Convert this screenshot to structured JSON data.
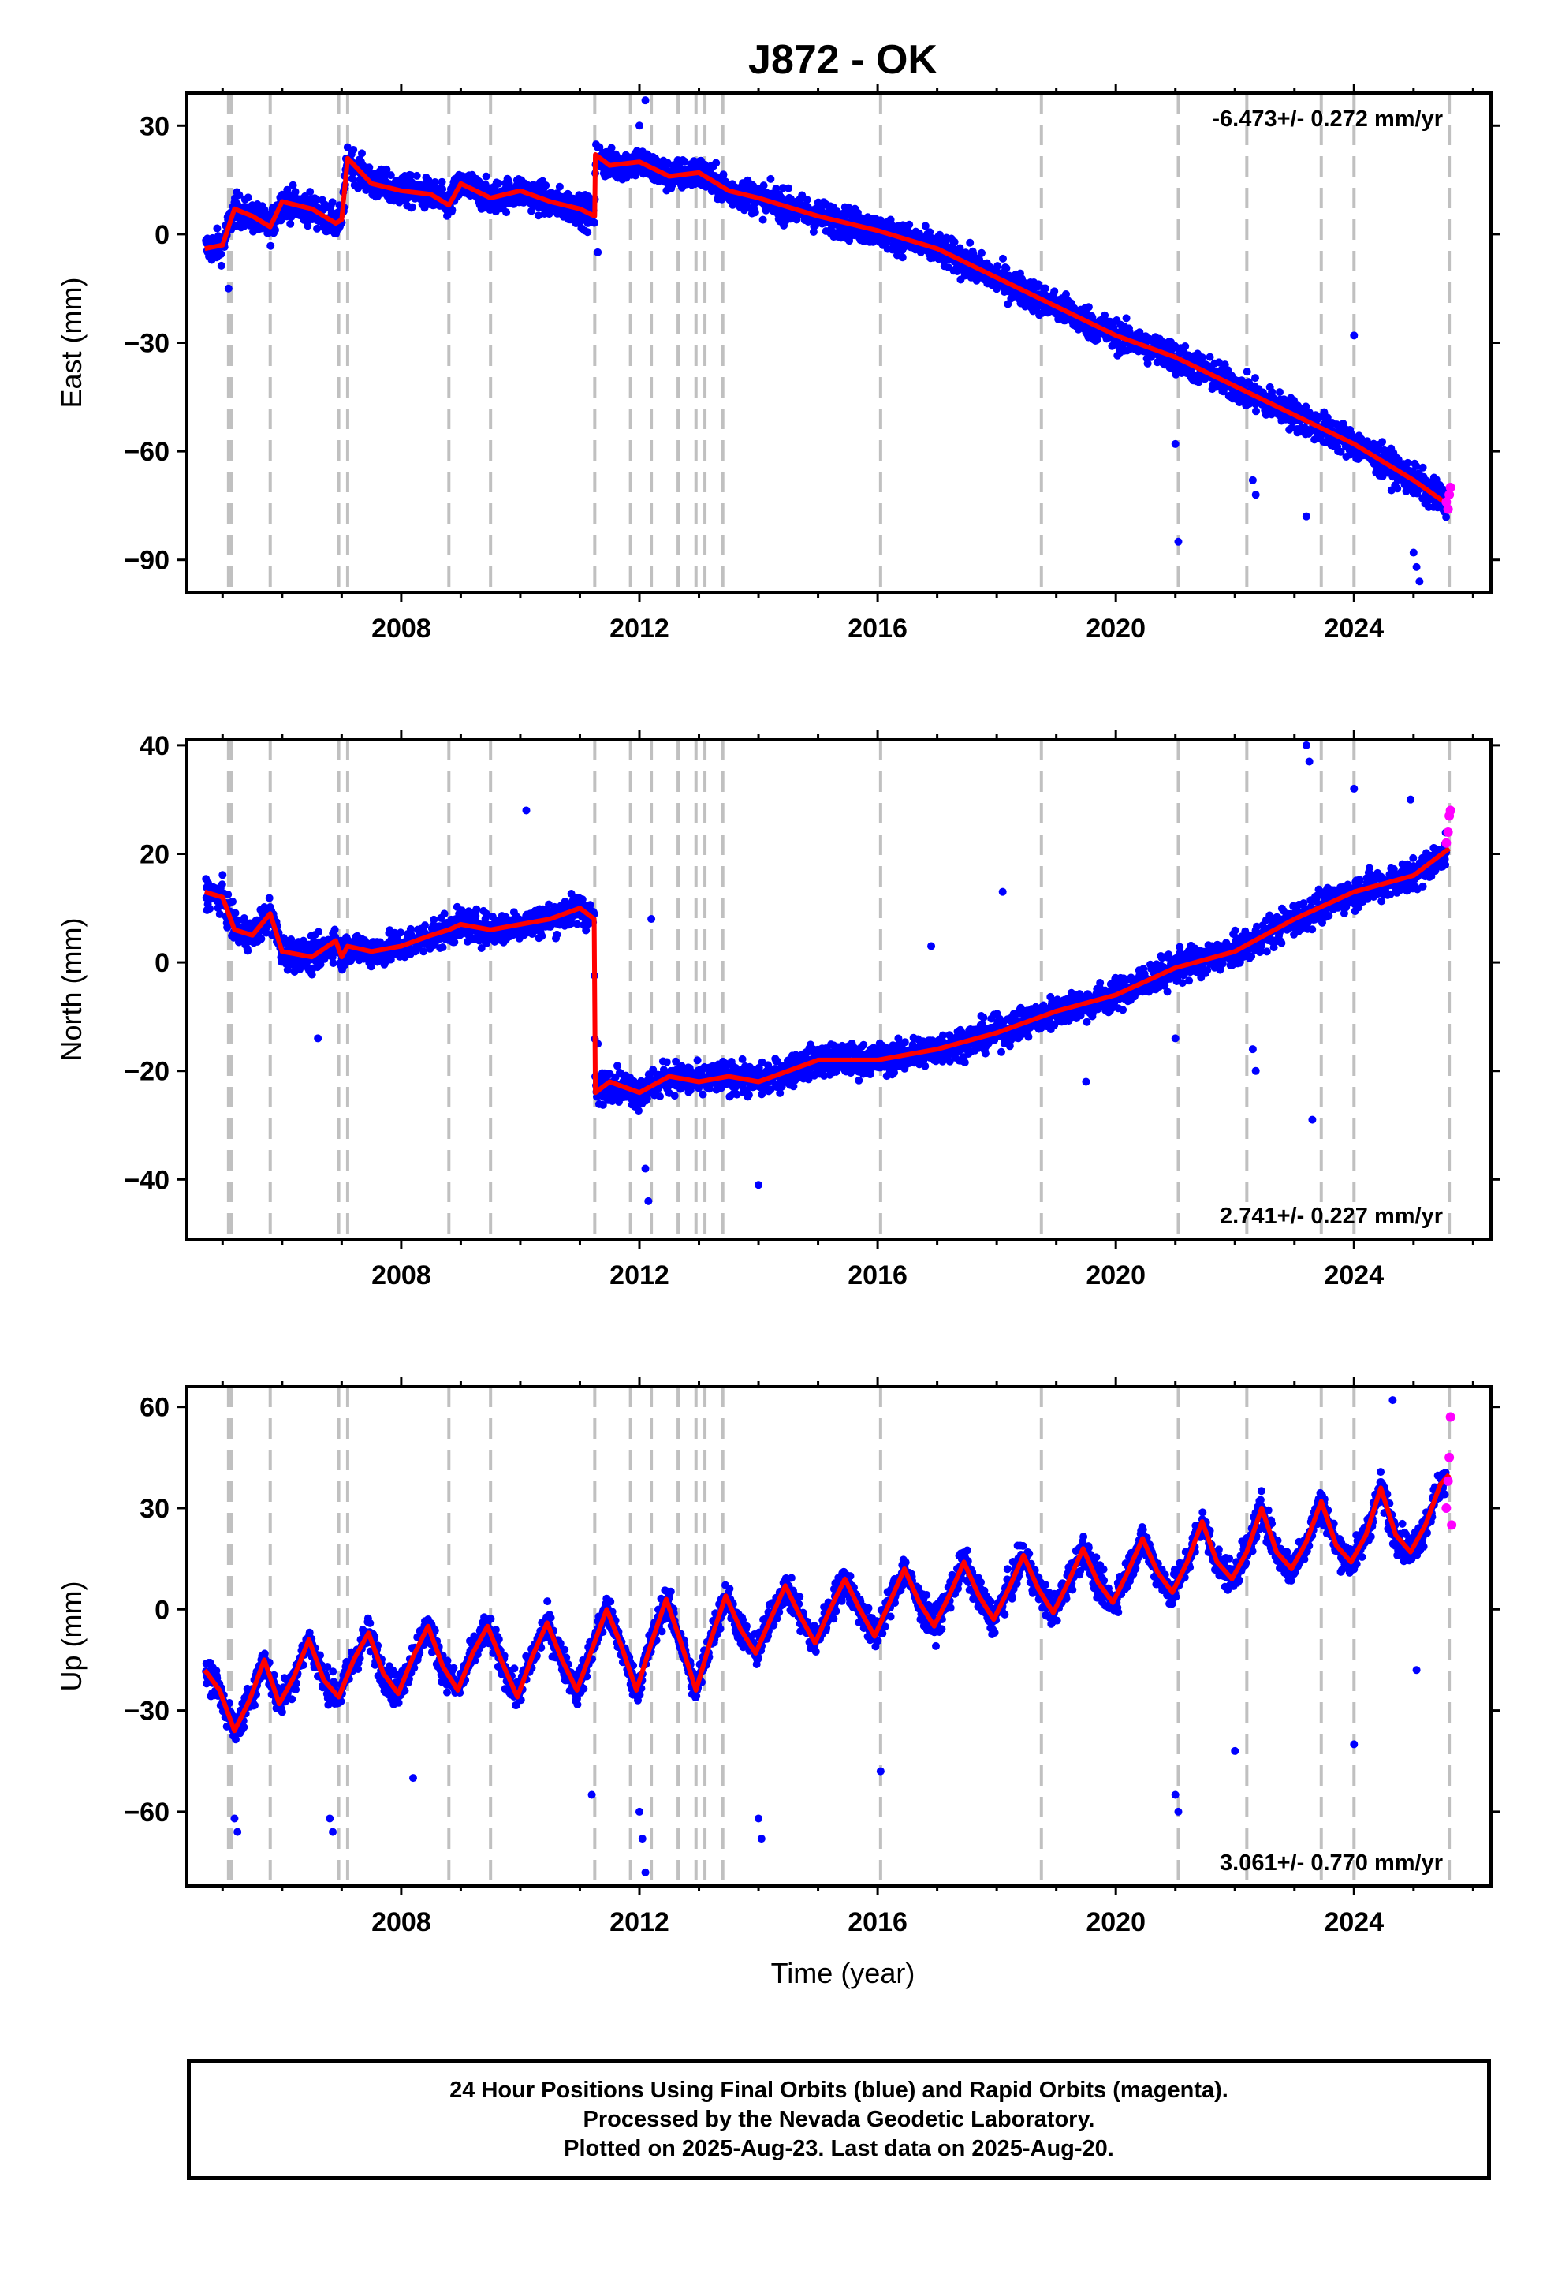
{
  "page": {
    "title": "J872 - OK",
    "xlabel": "Time (year)",
    "footer_lines": [
      "24 Hour Positions Using Final Orbits (blue) and Rapid Orbits (magenta).",
      "Processed by the Nevada Geodetic Laboratory.",
      "Plotted on 2025-Aug-23. Last data on 2025-Aug-20."
    ]
  },
  "colors": {
    "final_orbits": "#0000ff",
    "rapid_orbits": "#ff00ff",
    "model": "#ff0000",
    "event_lines": "#c0c0c0"
  },
  "chart_data": [
    {
      "type": "scatter",
      "name": "east",
      "title": "J872 - OK",
      "ylabel": "East (mm)",
      "xlabel": "",
      "xlim": [
        2004.4,
        2026.3
      ],
      "ylim": [
        -99,
        39
      ],
      "xticks": [
        "2008",
        "2012",
        "2016",
        "2020",
        "2024"
      ],
      "yticks": [
        "30",
        "0",
        "−30",
        "−60",
        "−90"
      ],
      "ytick_values": [
        30,
        0,
        -30,
        -60,
        -90
      ],
      "rate_label": "-6.473+/- 0.272 mm/yr",
      "rate_position": "top-right",
      "grid": false,
      "event_lines": [
        2005.1,
        2005.15,
        2005.8,
        2006.95,
        2007.1,
        2008.8,
        2009.5,
        2011.25,
        2011.85,
        2012.2,
        2012.65,
        2012.95,
        2013.1,
        2013.4,
        2016.05,
        2018.75,
        2021.05,
        2022.2,
        2023.45,
        2024.0,
        2025.6
      ],
      "model": {
        "x": [
          2004.7,
          2005.0,
          2005.2,
          2005.5,
          2005.8,
          2006.0,
          2006.5,
          2006.9,
          2007.0,
          2007.1,
          2007.5,
          2008.0,
          2008.5,
          2008.8,
          2009.0,
          2009.5,
          2010.0,
          2010.5,
          2011.0,
          2011.25,
          2011.26,
          2011.5,
          2012.0,
          2012.5,
          2013.0,
          2013.5,
          2014.0,
          2015.0,
          2016.0,
          2017.0,
          2018.0,
          2019.0,
          2020.0,
          2021.0,
          2022.0,
          2023.0,
          2024.0,
          2025.0,
          2025.6
        ],
        "y": [
          -4,
          -3,
          7,
          5,
          2,
          9,
          7,
          3,
          4,
          21,
          14,
          12,
          11,
          8,
          14,
          10,
          12,
          9,
          7,
          5,
          22,
          19,
          20,
          16,
          17,
          12,
          10,
          5,
          1,
          -4,
          -12,
          -20,
          -28,
          -34,
          -42,
          -50,
          -58,
          -68,
          -75
        ]
      },
      "outliers": {
        "x": [
          2005.1,
          2011.3,
          2012.0,
          2012.1,
          2021.0,
          2021.05,
          2022.3,
          2022.35,
          2023.2,
          2024.0,
          2025.0,
          2025.05,
          2025.1
        ],
        "y": [
          -15,
          -5,
          30,
          37,
          -58,
          -85,
          -68,
          -72,
          -78,
          -28,
          -88,
          -92,
          -96
        ]
      },
      "rapid": {
        "x": [
          2025.55,
          2025.58,
          2025.6,
          2025.62
        ],
        "y": [
          -74,
          -76,
          -72,
          -70
        ]
      }
    },
    {
      "type": "scatter",
      "name": "north",
      "ylabel": "North (mm)",
      "xlabel": "",
      "xlim": [
        2004.4,
        2026.3
      ],
      "ylim": [
        -51,
        41
      ],
      "xticks": [
        "2008",
        "2012",
        "2016",
        "2020",
        "2024"
      ],
      "yticks": [
        "40",
        "20",
        "0",
        "−20",
        "−40"
      ],
      "ytick_values": [
        40,
        20,
        0,
        -20,
        -40
      ],
      "rate_label": "2.741+/- 0.227 mm/yr",
      "rate_position": "bottom-right",
      "grid": false,
      "event_lines": [
        2005.1,
        2005.15,
        2005.8,
        2006.95,
        2007.1,
        2008.8,
        2009.5,
        2011.25,
        2011.85,
        2012.2,
        2012.65,
        2012.95,
        2013.1,
        2013.4,
        2016.05,
        2018.75,
        2021.05,
        2022.2,
        2023.45,
        2024.0,
        2025.6
      ],
      "model": {
        "x": [
          2004.7,
          2005.0,
          2005.2,
          2005.5,
          2005.8,
          2006.0,
          2006.5,
          2006.9,
          2007.0,
          2007.1,
          2007.5,
          2008.0,
          2008.5,
          2008.8,
          2009.0,
          2009.5,
          2010.0,
          2010.5,
          2011.0,
          2011.24,
          2011.26,
          2011.5,
          2012.0,
          2012.5,
          2013.0,
          2013.5,
          2014.0,
          2015.0,
          2016.0,
          2017.0,
          2018.0,
          2019.0,
          2020.0,
          2021.0,
          2022.0,
          2023.0,
          2024.0,
          2025.0,
          2025.6
        ],
        "y": [
          13,
          12,
          6,
          5,
          9,
          2,
          1,
          4,
          1,
          3,
          2,
          3,
          5,
          6,
          7,
          6,
          7,
          8,
          10,
          8,
          -24,
          -22,
          -24,
          -21,
          -22,
          -21,
          -22,
          -18,
          -18,
          -16,
          -13,
          -9,
          -6,
          -1,
          2,
          8,
          13,
          16,
          21
        ]
      },
      "outliers": {
        "x": [
          2006.6,
          2010.1,
          2011.3,
          2012.1,
          2012.15,
          2012.2,
          2014.0,
          2016.9,
          2018.1,
          2019.5,
          2021.0,
          2022.3,
          2022.35,
          2023.2,
          2023.25,
          2023.3,
          2024.0,
          2024.95
        ],
        "y": [
          -14,
          28,
          -15,
          -38,
          -44,
          8,
          -41,
          3,
          13,
          -22,
          -14,
          -16,
          -20,
          40,
          37,
          -29,
          32,
          30
        ]
      },
      "rapid": {
        "x": [
          2025.55,
          2025.58,
          2025.6,
          2025.62
        ],
        "y": [
          22,
          24,
          27,
          28
        ]
      }
    },
    {
      "type": "scatter",
      "name": "up",
      "ylabel": "Up (mm)",
      "xlabel": "Time (year)",
      "xlim": [
        2004.4,
        2026.3
      ],
      "ylim": [
        -82,
        66
      ],
      "xticks": [
        "2008",
        "2012",
        "2016",
        "2020",
        "2024"
      ],
      "yticks": [
        "60",
        "30",
        "0",
        "−30",
        "−60"
      ],
      "ytick_values": [
        60,
        30,
        0,
        -30,
        -60
      ],
      "rate_label": "3.061+/- 0.770 mm/yr",
      "rate_position": "bottom-right",
      "grid": false,
      "event_lines": [
        2005.1,
        2005.15,
        2005.8,
        2006.95,
        2007.1,
        2008.8,
        2009.5,
        2011.25,
        2011.85,
        2012.2,
        2012.65,
        2012.95,
        2013.1,
        2013.4,
        2016.05,
        2018.75,
        2021.05,
        2022.2,
        2023.45,
        2024.0,
        2025.6
      ],
      "model": {
        "x": [
          2004.7,
          2004.95,
          2005.2,
          2005.45,
          2005.7,
          2005.95,
          2006.2,
          2006.45,
          2006.7,
          2006.95,
          2007.2,
          2007.45,
          2007.7,
          2007.95,
          2008.2,
          2008.45,
          2008.7,
          2008.95,
          2009.2,
          2009.45,
          2009.7,
          2009.95,
          2010.2,
          2010.45,
          2010.7,
          2010.95,
          2011.2,
          2011.45,
          2011.7,
          2011.95,
          2012.2,
          2012.45,
          2012.7,
          2012.95,
          2013.2,
          2013.45,
          2013.7,
          2013.95,
          2014.2,
          2014.45,
          2014.7,
          2014.95,
          2015.2,
          2015.45,
          2015.7,
          2015.95,
          2016.2,
          2016.45,
          2016.7,
          2016.95,
          2017.2,
          2017.45,
          2017.7,
          2017.95,
          2018.2,
          2018.45,
          2018.7,
          2018.95,
          2019.2,
          2019.45,
          2019.7,
          2019.95,
          2020.2,
          2020.45,
          2020.7,
          2020.95,
          2021.2,
          2021.45,
          2021.7,
          2021.95,
          2022.2,
          2022.45,
          2022.7,
          2022.95,
          2023.2,
          2023.45,
          2023.7,
          2023.95,
          2024.2,
          2024.45,
          2024.7,
          2024.95,
          2025.2,
          2025.45,
          2025.6
        ],
        "y": [
          -18,
          -24,
          -36,
          -27,
          -15,
          -28,
          -20,
          -9,
          -21,
          -26,
          -15,
          -7,
          -19,
          -25,
          -14,
          -5,
          -17,
          -24,
          -13,
          -5,
          -16,
          -26,
          -14,
          -4,
          -15,
          -24,
          -12,
          0,
          -11,
          -24,
          -10,
          3,
          -10,
          -24,
          -9,
          4,
          -6,
          -13,
          -3,
          7,
          -2,
          -10,
          0,
          9,
          0,
          -8,
          2,
          12,
          2,
          -5,
          4,
          14,
          4,
          -3,
          6,
          16,
          6,
          -1,
          8,
          18,
          8,
          2,
          11,
          21,
          11,
          5,
          14,
          26,
          14,
          9,
          17,
          30,
          17,
          12,
          20,
          32,
          19,
          14,
          22,
          36,
          22,
          17,
          25,
          37,
          40
        ]
      },
      "outliers": {
        "x": [
          2005.2,
          2005.25,
          2006.8,
          2006.85,
          2008.2,
          2011.2,
          2012.0,
          2012.05,
          2012.1,
          2014.0,
          2014.05,
          2016.05,
          2021.0,
          2021.05,
          2022.0,
          2024.0,
          2024.65,
          2025.05
        ],
        "y": [
          -62,
          -66,
          -62,
          -66,
          -50,
          -55,
          -60,
          -68,
          -78,
          -62,
          -68,
          -48,
          -55,
          -60,
          -42,
          -40,
          62,
          -18
        ]
      },
      "rapid": {
        "x": [
          2025.55,
          2025.58,
          2025.6,
          2025.62,
          2025.64
        ],
        "y": [
          30,
          38,
          45,
          57,
          25
        ]
      }
    }
  ]
}
